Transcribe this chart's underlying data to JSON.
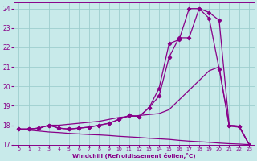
{
  "bg_color": "#c8eaea",
  "grid_color": "#9ecece",
  "line_color": "#880088",
  "xlabel": "Windchill (Refroidissement éolien,°C)",
  "xlabel_color": "#880088",
  "xtick_color": "#880088",
  "ytick_color": "#880088",
  "xlim": [
    -0.5,
    23.5
  ],
  "ylim": [
    17,
    24.3
  ],
  "yticks": [
    17,
    18,
    19,
    20,
    21,
    22,
    23,
    24
  ],
  "xticks": [
    0,
    1,
    2,
    3,
    4,
    5,
    6,
    7,
    8,
    9,
    10,
    11,
    12,
    13,
    14,
    15,
    16,
    17,
    18,
    19,
    20,
    21,
    22,
    23
  ],
  "line1_x": [
    0,
    1,
    2,
    3,
    4,
    5,
    6,
    7,
    8,
    9,
    10,
    11,
    12,
    13,
    14,
    15,
    16,
    17,
    18,
    19,
    20,
    21,
    22,
    23
  ],
  "line1_y": [
    17.8,
    17.75,
    17.7,
    17.65,
    17.62,
    17.58,
    17.55,
    17.52,
    17.5,
    17.47,
    17.43,
    17.4,
    17.37,
    17.33,
    17.3,
    17.27,
    17.22,
    17.18,
    17.15,
    17.12,
    17.08,
    17.05,
    17.03,
    17.0
  ],
  "line2_x": [
    0,
    1,
    2,
    3,
    4,
    5,
    6,
    7,
    8,
    9,
    10,
    11,
    12,
    13,
    14,
    15,
    16,
    17,
    18,
    19,
    20,
    21,
    22,
    23
  ],
  "line2_y": [
    17.8,
    17.8,
    17.85,
    18.0,
    18.0,
    18.05,
    18.1,
    18.15,
    18.2,
    18.3,
    18.4,
    18.45,
    18.5,
    18.55,
    18.6,
    18.8,
    19.3,
    19.8,
    20.3,
    20.8,
    21.0,
    17.95,
    17.9,
    17.0
  ],
  "line3_x": [
    0,
    1,
    2,
    3,
    4,
    5,
    6,
    7,
    8,
    9,
    10,
    11,
    12,
    13,
    14,
    15,
    16,
    17,
    18,
    19,
    20,
    21,
    22,
    23
  ],
  "line3_y": [
    17.8,
    17.8,
    17.85,
    18.0,
    17.85,
    17.8,
    17.85,
    17.9,
    18.0,
    18.1,
    18.3,
    18.5,
    18.45,
    18.9,
    19.5,
    21.5,
    22.5,
    22.5,
    24.0,
    23.8,
    23.4,
    18.0,
    17.95,
    17.0
  ],
  "line4_x": [
    0,
    1,
    2,
    3,
    4,
    5,
    6,
    7,
    8,
    9,
    10,
    11,
    12,
    13,
    14,
    15,
    16,
    17,
    18,
    19,
    20,
    21,
    22,
    23
  ],
  "line4_y": [
    17.8,
    17.8,
    17.85,
    18.0,
    17.85,
    17.8,
    17.85,
    17.9,
    18.0,
    18.1,
    18.3,
    18.5,
    18.45,
    18.9,
    19.9,
    22.2,
    22.4,
    24.0,
    24.0,
    23.5,
    20.9,
    18.0,
    17.95,
    17.0
  ]
}
